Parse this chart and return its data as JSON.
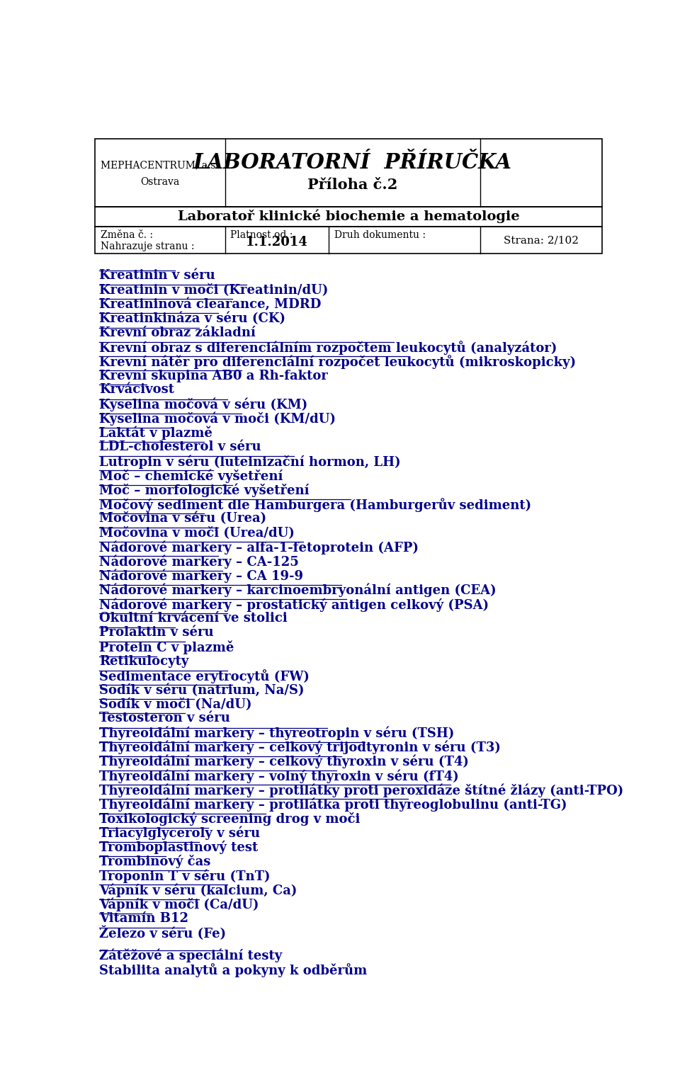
{
  "header_left_line1": "MEPHACENTRUM, a.s.",
  "header_left_line2": "Ostrava",
  "header_center_line1": "LABORATORNÍ  PŘÍRUČKA",
  "header_center_line2": "Příloha č.2",
  "header_sub": "Laboratoř klinické biochemie a hematologie",
  "items": [
    "Kreatinin v séru",
    "Kreatinin v moči (Kreatinin/dU)",
    "Kreatininová clearance, MDRD",
    "Kreatinkináza v séru (CK)",
    "Krevní obraz základní",
    "Krevní obraz s diferenciálním rozpočtem leukocytů (analyzátor)",
    "Krevní nátěr pro diferenciální rozpočet leukocytů (mikroskopicky)",
    "Krevní skupina AB0 a Rh-faktor",
    "Krvácivost",
    "Kyselina močová v séru (KM)",
    "Kyselina močová v moči (KM/dU)",
    "Laktát v plazmě",
    "LDL-cholesterol v séru",
    "Lutropin v séru (luteinizační hormon, LH)",
    "Moč – chemické vyšetření",
    "Moč – morfologické vyšetření",
    "Močový sediment dle Hamburgera (Hamburgerův sediment)",
    "Močovina v séru (Urea)",
    "Močovina v moči (Urea/dU)",
    "Nádorové markery – alfa-1-fetoprotein (AFP)",
    "Nádorové markery – CA-125",
    "Nádorové markery – CA 19-9",
    "Nádorové markery – karcinoembryonální antigen (CEA)",
    "Nádorové markery – prostatický antigen celkový (PSA)",
    "Okultní krvácení ve stolici",
    "Prolaktin v séru",
    "Protein C v plazmě",
    "Retikulocyty",
    "Sedimentace erytrocytů (FW)",
    "Sodík v séru (natrium, Na/S)",
    "Sodík v moči (Na/dU)",
    "Testosteron v séru",
    "Thyreoidální markery – thyreotropin v séru (TSH)",
    "Thyreoidální markery – celkový trijodtyronin v séru (T3)",
    "Thyreoidální markery – celkový thyroxin v séru (T4)",
    "Thyreoidální markery – volný thyroxin v séru (fT4)",
    "Thyreoidální markery – protilátky proti peroxidáze štítné žlázy (anti-TPO)",
    "Thyreoidální markery – protilátka proti thyreoglobulinu (anti-TG)",
    "Toxikologický screening drog v moči",
    "Triacylglyceroly v séru",
    "Tromboplastinový test",
    "Trombinový čas",
    "Troponin T v séru (TnT)",
    "Vápník v séru (kalcium, Ca)",
    "Vápník v moči (Ca/dU)",
    "Vitamín B12",
    "Železo v séru (Fe)"
  ],
  "footer_items": [
    "Zátěžové a speciální testy",
    "Stabilita analytů a pokyny k odběrům"
  ],
  "text_color": "#00008B",
  "header_text_color": "#000000",
  "bg_color": "#FFFFFF",
  "border_color": "#000000",
  "item_fontsize": 13.0,
  "header_fontsize_main": 21,
  "header_fontsize_sub_title": 15,
  "header_fontsize_sub": 14,
  "meta_fontsize": 10
}
